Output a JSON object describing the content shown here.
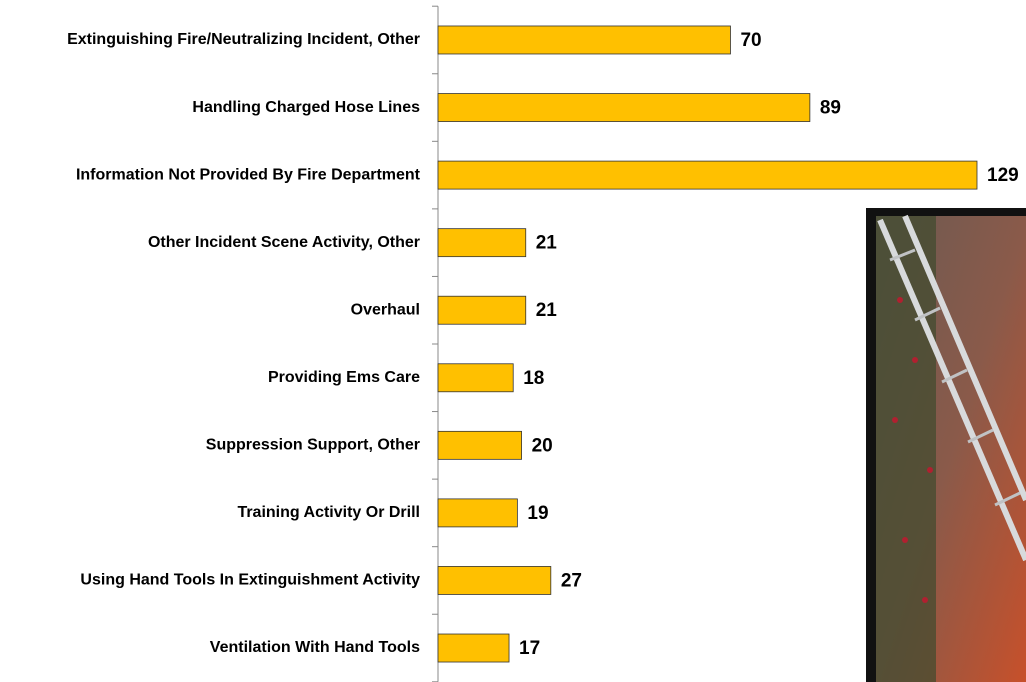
{
  "chart_data": {
    "type": "bar",
    "orientation": "horizontal",
    "categories": [
      "Extinguishing Fire/Neutralizing Incident, Other",
      "Handling Charged Hose Lines",
      "Information Not Provided By Fire Department",
      "Other Incident Scene Activity, Other",
      "Overhaul",
      "Providing Ems Care",
      "Suppression Support, Other",
      "Training Activity Or Drill",
      "Using Hand Tools In Extinguishment Activity",
      "Ventilation With Hand Tools"
    ],
    "values": [
      70,
      89,
      129,
      21,
      21,
      18,
      20,
      19,
      27,
      17
    ],
    "color": "#ffc000"
  }
}
